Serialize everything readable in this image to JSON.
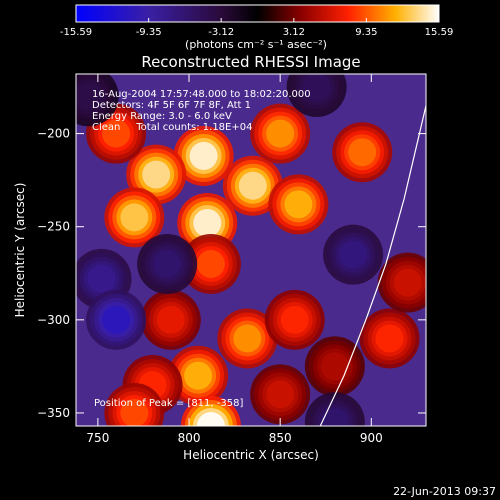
{
  "chart_data": {
    "type": "heatmap",
    "title": "Reconstructed RHESSI Image",
    "xlabel": "Heliocentric X (arcsec)",
    "ylabel": "Heliocentric Y (arcsec)",
    "xlim": [
      738,
      930
    ],
    "ylim": [
      -357,
      -168
    ],
    "x_ticks": [
      750,
      800,
      850,
      900
    ],
    "y_ticks": [
      -200,
      -250,
      -300,
      -350
    ],
    "colorbar": {
      "ticks": [
        "-15.59",
        "-9.35",
        "-3.12",
        "3.12",
        "9.35",
        "15.59"
      ],
      "values": [
        -15.59,
        -9.35,
        -3.12,
        3.12,
        9.35,
        15.59
      ],
      "unit_label": "(photons cm⁻² s⁻¹ asec⁻²)"
    },
    "annotations": [
      "16-Aug-2004 17:57:48.000 to 18:02:20.000",
      "Detectors: 4F 5F 6F 7F 8F, Att 1",
      "Energy Range: 3.0 - 6.0 keV",
      "Clean     Total counts: 1.18E+04"
    ],
    "peak_label": "Position of Peak = [811, -358]",
    "peak_position": [
      811,
      -358
    ],
    "limb_curve": [
      [
        872,
        -357
      ],
      [
        885,
        -330
      ],
      [
        897,
        -300
      ],
      [
        908,
        -270
      ],
      [
        918,
        -235
      ],
      [
        930,
        -185
      ]
    ],
    "intensity_blobs": [
      {
        "x": 808,
        "y": -212,
        "v": 15
      },
      {
        "x": 782,
        "y": -222,
        "v": 14
      },
      {
        "x": 835,
        "y": -228,
        "v": 14
      },
      {
        "x": 770,
        "y": -245,
        "v": 13
      },
      {
        "x": 810,
        "y": -248,
        "v": 15
      },
      {
        "x": 850,
        "y": -200,
        "v": 11
      },
      {
        "x": 860,
        "y": -238,
        "v": 12
      },
      {
        "x": 895,
        "y": -210,
        "v": 10
      },
      {
        "x": 812,
        "y": -270,
        "v": 9
      },
      {
        "x": 790,
        "y": -300,
        "v": 7
      },
      {
        "x": 832,
        "y": -310,
        "v": 11
      },
      {
        "x": 858,
        "y": -300,
        "v": 8
      },
      {
        "x": 805,
        "y": -330,
        "v": 12
      },
      {
        "x": 780,
        "y": -335,
        "v": 8
      },
      {
        "x": 770,
        "y": -350,
        "v": 9
      },
      {
        "x": 812,
        "y": -357,
        "v": 16
      },
      {
        "x": 850,
        "y": -340,
        "v": 6
      },
      {
        "x": 880,
        "y": -325,
        "v": 5
      },
      {
        "x": 910,
        "y": -310,
        "v": 8
      },
      {
        "x": 920,
        "y": -280,
        "v": 6
      },
      {
        "x": 760,
        "y": -200,
        "v": 9
      },
      {
        "x": 752,
        "y": -278,
        "v": -8
      },
      {
        "x": 760,
        "y": -300,
        "v": -11
      },
      {
        "x": 788,
        "y": -270,
        "v": -6
      },
      {
        "x": 890,
        "y": -265,
        "v": -7
      },
      {
        "x": 870,
        "y": -175,
        "v": -5
      },
      {
        "x": 880,
        "y": -355,
        "v": -6
      },
      {
        "x": 745,
        "y": -180,
        "v": -4
      }
    ]
  },
  "timestamp": "22-Jun-2013 09:37"
}
